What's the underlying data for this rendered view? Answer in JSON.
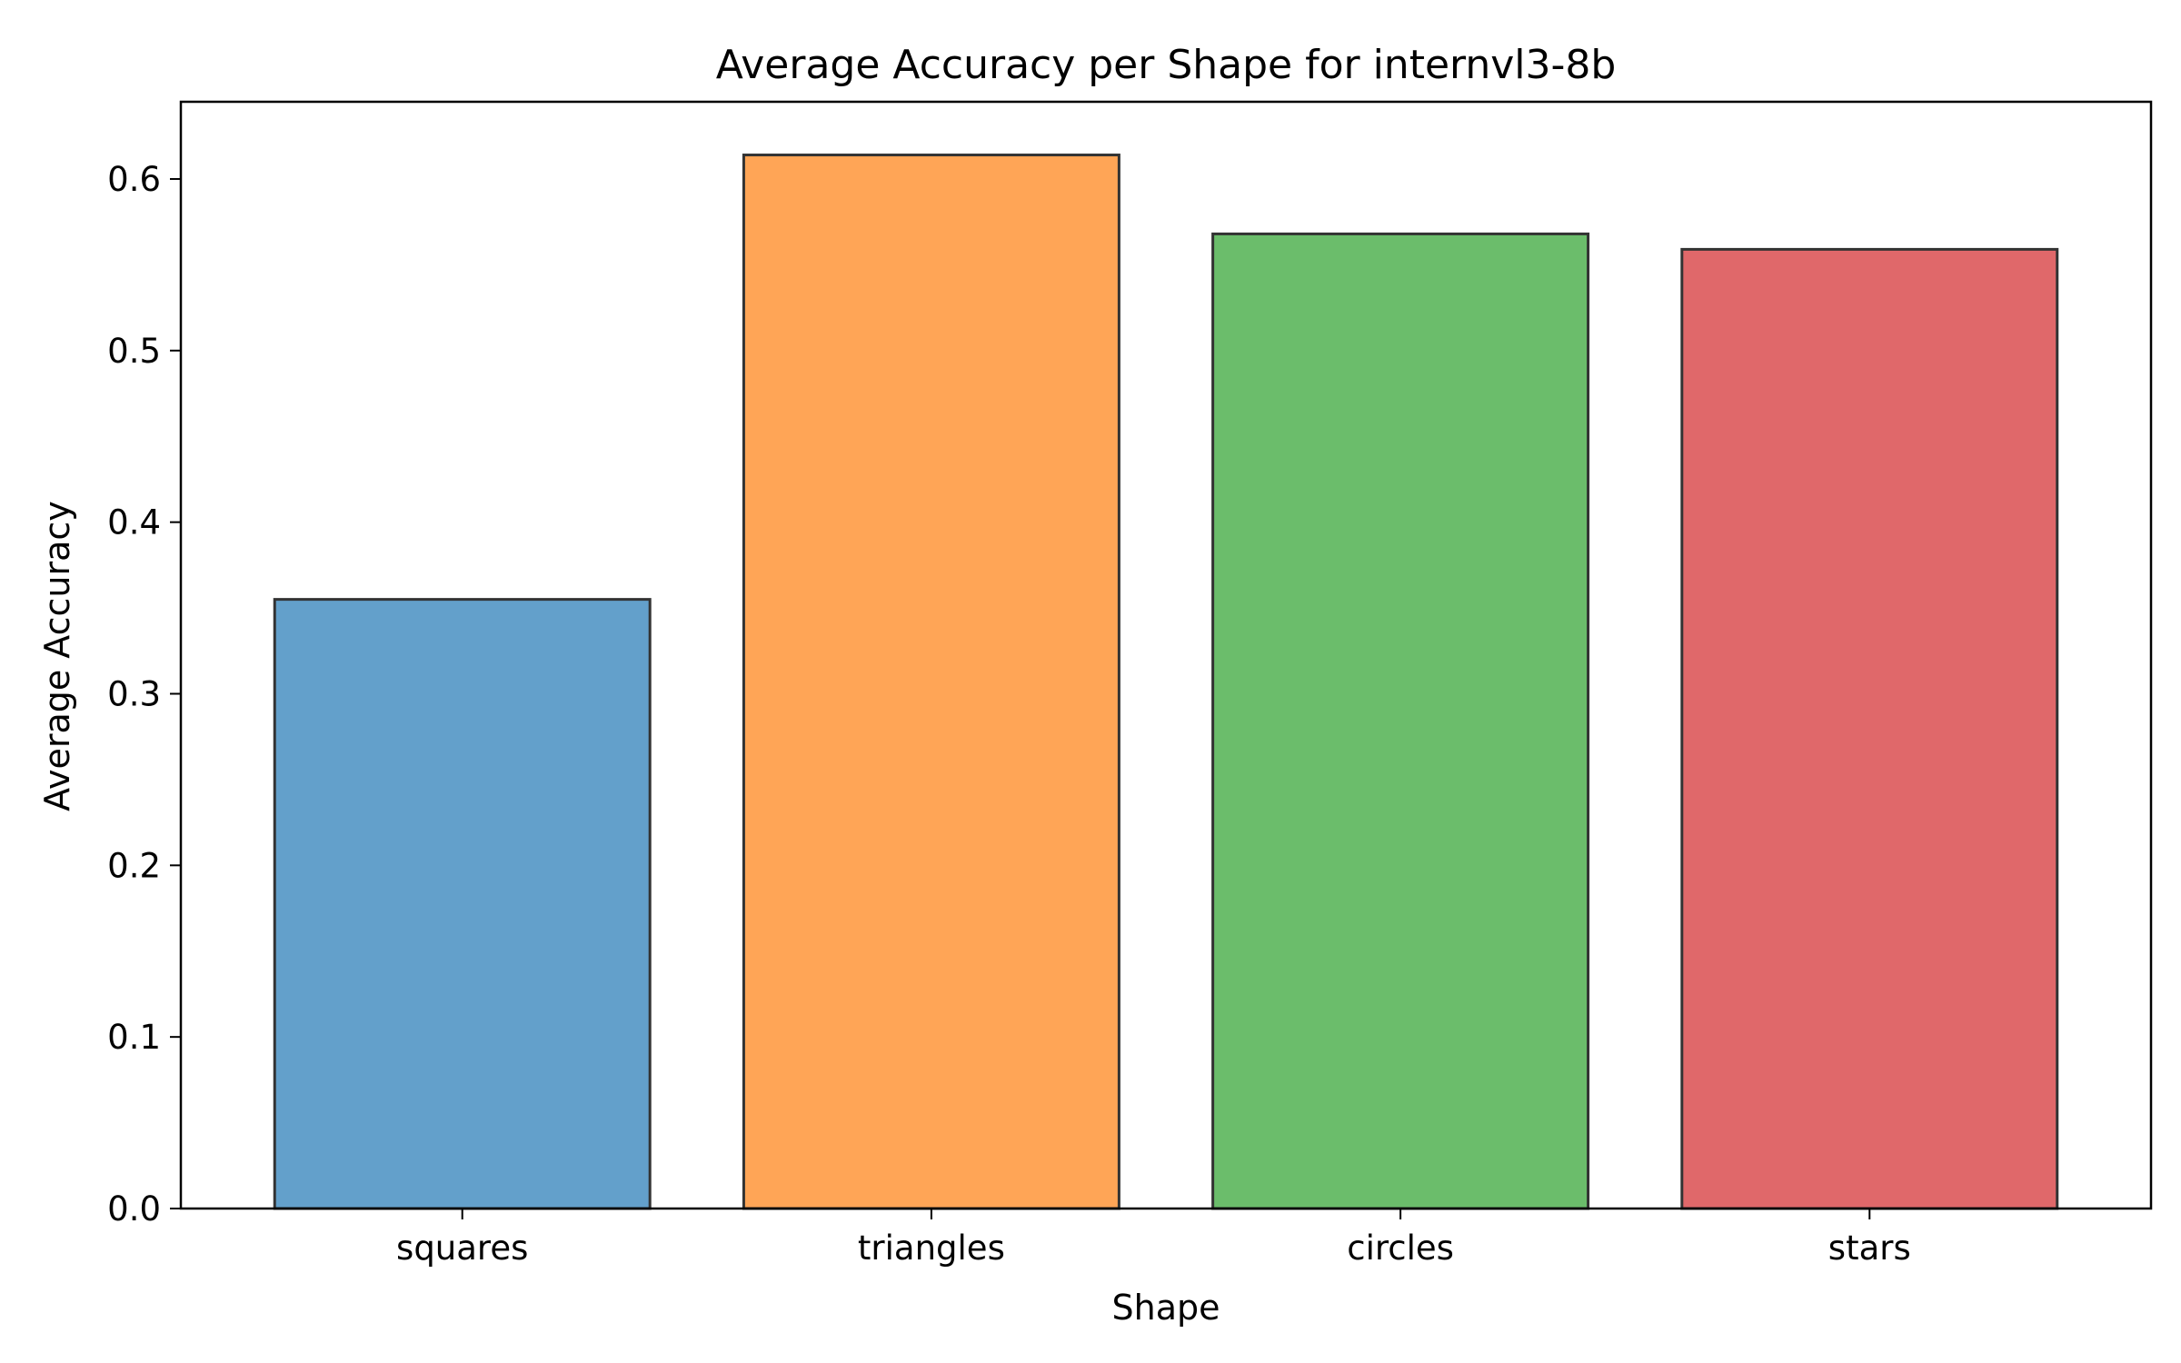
{
  "chart_data": {
    "type": "bar",
    "title": "Average Accuracy per Shape for internvl3-8b",
    "xlabel": "Shape",
    "ylabel": "Average Accuracy",
    "categories": [
      "squares",
      "triangles",
      "circles",
      "stars"
    ],
    "values": [
      0.355,
      0.614,
      0.568,
      0.559
    ],
    "colors": [
      "#63a0cb",
      "#ffa556",
      "#6bbd6b",
      "#e0686a"
    ],
    "edge_color": "#333333",
    "ylim": [
      0,
      0.645
    ],
    "yticks": [
      0.0,
      0.1,
      0.2,
      0.3,
      0.4,
      0.5,
      0.6
    ],
    "ytick_labels": [
      "0.0",
      "0.1",
      "0.2",
      "0.3",
      "0.4",
      "0.5",
      "0.6"
    ],
    "grid": false,
    "legend": "none"
  }
}
